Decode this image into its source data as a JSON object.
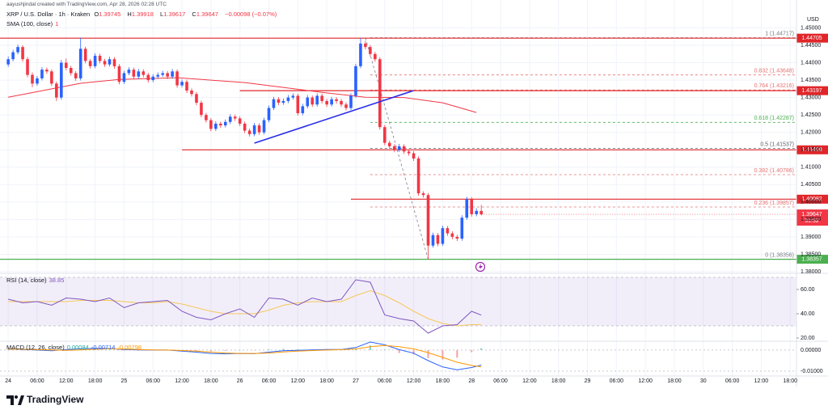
{
  "chart_data": {
    "type": "candlestick",
    "credit": "aayushjindal created with TradingView.com, Apr 28, 2026 02:28 UTC",
    "title": "XRP / U.S. Dollar · 1h · Kraken",
    "ohlc_prefixes": [
      "O",
      "H",
      "L",
      "C"
    ],
    "change_label": "−0.00098 (−0.07%)",
    "currency": "USD",
    "countdown": "31:52",
    "brand": "TradingView",
    "up_color": "#2962ff",
    "down_color": "#f23645",
    "xlim": [
      -1.7,
      163.3
    ],
    "xticks": [
      {
        "value": 0,
        "label": "24"
      },
      {
        "value": 6,
        "label": "06:00"
      },
      {
        "value": 12,
        "label": "12:00"
      },
      {
        "value": 18,
        "label": "18:00"
      },
      {
        "value": 24,
        "label": "25"
      },
      {
        "value": 30,
        "label": "06:00"
      },
      {
        "value": 36,
        "label": "12:00"
      },
      {
        "value": 42,
        "label": "18:00"
      },
      {
        "value": 48,
        "label": "26"
      },
      {
        "value": 54,
        "label": "06:00"
      },
      {
        "value": 60,
        "label": "12:00"
      },
      {
        "value": 66,
        "label": "18:00"
      },
      {
        "value": 72,
        "label": "27"
      },
      {
        "value": 78,
        "label": "06:00"
      },
      {
        "value": 84,
        "label": "12:00"
      },
      {
        "value": 90,
        "label": "18:00"
      },
      {
        "value": 96,
        "label": "28"
      },
      {
        "value": 102,
        "label": "06:00"
      },
      {
        "value": 108,
        "label": "12:00"
      },
      {
        "value": 114,
        "label": "18:00"
      },
      {
        "value": 120,
        "label": "29"
      },
      {
        "value": 126,
        "label": "06:00"
      },
      {
        "value": 132,
        "label": "12:00"
      },
      {
        "value": 138,
        "label": "18:00"
      },
      {
        "value": 144,
        "label": "30"
      },
      {
        "value": 150,
        "label": "06:00"
      },
      {
        "value": 156,
        "label": "12:00"
      },
      {
        "value": 162,
        "label": "18:00"
      }
    ],
    "ylim": [
      1.38,
      1.458
    ],
    "yticks": [
      {
        "value": 1.38,
        "label": "1.38000"
      },
      {
        "value": 1.385,
        "label": "1.38500"
      },
      {
        "value": 1.39,
        "label": "1.39000"
      },
      {
        "value": 1.395,
        "label": "1.39500"
      },
      {
        "value": 1.4,
        "label": "1.40000"
      },
      {
        "value": 1.405,
        "label": "1.40500"
      },
      {
        "value": 1.41,
        "label": "1.41000"
      },
      {
        "value": 1.415,
        "label": "1.41500"
      },
      {
        "value": 1.42,
        "label": "1.42000"
      },
      {
        "value": 1.425,
        "label": "1.42500"
      },
      {
        "value": 1.43,
        "label": "1.43000"
      },
      {
        "value": 1.435,
        "label": "1.43500"
      },
      {
        "value": 1.44,
        "label": "1.44000"
      },
      {
        "value": 1.445,
        "label": "1.44500"
      },
      {
        "value": 1.45,
        "label": "1.45000"
      }
    ],
    "grid": true,
    "candles": {
      "ohlc": [
        [
          1.4395,
          1.4418,
          1.4388,
          1.441
        ],
        [
          1.441,
          1.4437,
          1.4404,
          1.443
        ],
        [
          1.443,
          1.4452,
          1.4424,
          1.4445
        ],
        [
          1.4445,
          1.445,
          1.4403,
          1.441
        ],
        [
          1.441,
          1.4416,
          1.4358,
          1.4365
        ],
        [
          1.4365,
          1.4372,
          1.433,
          1.434
        ],
        [
          1.434,
          1.4362,
          1.4334,
          1.4355
        ],
        [
          1.4355,
          1.4387,
          1.4349,
          1.438
        ],
        [
          1.438,
          1.4386,
          1.4368,
          1.4375
        ],
        [
          1.4375,
          1.4381,
          1.4333,
          1.434
        ],
        [
          1.434,
          1.4346,
          1.429,
          1.43
        ],
        [
          1.43,
          1.4408,
          1.4294,
          1.44
        ],
        [
          1.44,
          1.4412,
          1.4378,
          1.4385
        ],
        [
          1.4385,
          1.4391,
          1.4363,
          1.437
        ],
        [
          1.437,
          1.4376,
          1.4348,
          1.4355
        ],
        [
          1.4355,
          1.4472,
          1.4349,
          1.444
        ],
        [
          1.444,
          1.4446,
          1.4398,
          1.4405
        ],
        [
          1.4405,
          1.4411,
          1.4383,
          1.439
        ],
        [
          1.439,
          1.4427,
          1.4384,
          1.442
        ],
        [
          1.442,
          1.4426,
          1.4398,
          1.4405
        ],
        [
          1.4405,
          1.4411,
          1.4388,
          1.4395
        ],
        [
          1.4395,
          1.4417,
          1.4389,
          1.441
        ],
        [
          1.441,
          1.4416,
          1.4383,
          1.439
        ],
        [
          1.439,
          1.4396,
          1.4338,
          1.4345
        ],
        [
          1.4345,
          1.4377,
          1.4339,
          1.437
        ],
        [
          1.437,
          1.4387,
          1.4364,
          1.438
        ],
        [
          1.438,
          1.4386,
          1.4353,
          1.436
        ],
        [
          1.436,
          1.4382,
          1.4354,
          1.4375
        ],
        [
          1.4375,
          1.4381,
          1.4358,
          1.4365
        ],
        [
          1.4365,
          1.4371,
          1.4343,
          1.435
        ],
        [
          1.435,
          1.4367,
          1.4344,
          1.436
        ],
        [
          1.436,
          1.4372,
          1.4354,
          1.4365
        ],
        [
          1.4365,
          1.4377,
          1.4359,
          1.437
        ],
        [
          1.437,
          1.4376,
          1.4353,
          1.436
        ],
        [
          1.436,
          1.4382,
          1.4354,
          1.4375
        ],
        [
          1.4375,
          1.4381,
          1.4328,
          1.4335
        ],
        [
          1.4335,
          1.4352,
          1.4329,
          1.4345
        ],
        [
          1.4345,
          1.4351,
          1.4313,
          1.432
        ],
        [
          1.432,
          1.4326,
          1.4303,
          1.431
        ],
        [
          1.431,
          1.4316,
          1.4278,
          1.4285
        ],
        [
          1.4285,
          1.4291,
          1.4243,
          1.425
        ],
        [
          1.425,
          1.4256,
          1.4228,
          1.4235
        ],
        [
          1.4235,
          1.4241,
          1.4203,
          1.421
        ],
        [
          1.421,
          1.4232,
          1.4204,
          1.4225
        ],
        [
          1.4225,
          1.4231,
          1.4213,
          1.422
        ],
        [
          1.422,
          1.4237,
          1.4214,
          1.423
        ],
        [
          1.423,
          1.4252,
          1.4224,
          1.4245
        ],
        [
          1.4245,
          1.4251,
          1.4233,
          1.424
        ],
        [
          1.424,
          1.4246,
          1.4218,
          1.4225
        ],
        [
          1.4225,
          1.4231,
          1.4198,
          1.4205
        ],
        [
          1.4205,
          1.4211,
          1.4188,
          1.4195
        ],
        [
          1.4195,
          1.4227,
          1.4189,
          1.422
        ],
        [
          1.422,
          1.4226,
          1.4193,
          1.42
        ],
        [
          1.42,
          1.4242,
          1.4194,
          1.4235
        ],
        [
          1.4235,
          1.4277,
          1.4229,
          1.427
        ],
        [
          1.427,
          1.4302,
          1.4264,
          1.4295
        ],
        [
          1.4295,
          1.4301,
          1.4278,
          1.4285
        ],
        [
          1.4285,
          1.4297,
          1.4279,
          1.429
        ],
        [
          1.429,
          1.4307,
          1.4284,
          1.43
        ],
        [
          1.43,
          1.4312,
          1.4294,
          1.4305
        ],
        [
          1.4305,
          1.4311,
          1.4248,
          1.4255
        ],
        [
          1.4255,
          1.4282,
          1.4249,
          1.4275
        ],
        [
          1.4275,
          1.4307,
          1.4269,
          1.43
        ],
        [
          1.43,
          1.4306,
          1.4273,
          1.428
        ],
        [
          1.428,
          1.4312,
          1.4274,
          1.4305
        ],
        [
          1.4305,
          1.4311,
          1.4283,
          1.429
        ],
        [
          1.429,
          1.4296,
          1.4273,
          1.428
        ],
        [
          1.428,
          1.4302,
          1.4274,
          1.4295
        ],
        [
          1.4295,
          1.4301,
          1.4283,
          1.429
        ],
        [
          1.429,
          1.4296,
          1.4273,
          1.428
        ],
        [
          1.428,
          1.4286,
          1.4263,
          1.427
        ],
        [
          1.427,
          1.4312,
          1.4264,
          1.4305
        ],
        [
          1.4305,
          1.4397,
          1.4299,
          1.439
        ],
        [
          1.439,
          1.44717,
          1.4384,
          1.4455
        ],
        [
          1.4455,
          1.4463,
          1.4438,
          1.4445
        ],
        [
          1.4445,
          1.4451,
          1.4418,
          1.4425
        ],
        [
          1.4425,
          1.4431,
          1.4403,
          1.441
        ],
        [
          1.441,
          1.4416,
          1.4208,
          1.4215
        ],
        [
          1.4215,
          1.4221,
          1.4163,
          1.417
        ],
        [
          1.417,
          1.4176,
          1.4153,
          1.416
        ],
        [
          1.416,
          1.4166,
          1.4143,
          1.415
        ],
        [
          1.415,
          1.4167,
          1.4144,
          1.416
        ],
        [
          1.416,
          1.4166,
          1.4138,
          1.4145
        ],
        [
          1.4145,
          1.4151,
          1.4133,
          1.414
        ],
        [
          1.414,
          1.4146,
          1.4118,
          1.4125
        ],
        [
          1.4125,
          1.4131,
          1.4018,
          1.4025
        ],
        [
          1.4025,
          1.4031,
          1.4013,
          1.402
        ],
        [
          1.402,
          1.4026,
          1.38356,
          1.3875
        ],
        [
          1.3875,
          1.3912,
          1.3869,
          1.3905
        ],
        [
          1.3905,
          1.3911,
          1.3873,
          1.388
        ],
        [
          1.388,
          1.3932,
          1.3874,
          1.3925
        ],
        [
          1.3925,
          1.3931,
          1.3903,
          1.391
        ],
        [
          1.391,
          1.3916,
          1.3893,
          1.39
        ],
        [
          1.39,
          1.3906,
          1.3888,
          1.3895
        ],
        [
          1.3895,
          1.3962,
          1.3889,
          1.3955
        ],
        [
          1.3955,
          1.4015,
          1.3949,
          1.4008
        ],
        [
          1.4008,
          1.4014,
          1.3958,
          1.3965
        ],
        [
          1.3965,
          1.3982,
          1.3959,
          1.39745
        ],
        [
          1.39745,
          1.39918,
          1.39617,
          1.39647
        ]
      ]
    },
    "sma": {
      "name": "SMA (100, close)",
      "value_label": "1",
      "color": "#f23645",
      "x": [
        0,
        15,
        23,
        35,
        49,
        57,
        65,
        74,
        82,
        90,
        97
      ],
      "values": [
        1.4301,
        1.4341,
        1.4352,
        1.4357,
        1.4343,
        1.4329,
        1.4315,
        1.4301,
        1.43,
        1.4285,
        1.4257
      ]
    },
    "trendline": {
      "color": "#2a2ee8",
      "x": [
        51,
        84
      ],
      "values": [
        1.4169,
        1.432
      ]
    },
    "sr_lines": [
      {
        "value": 1.44705,
        "color": "#e0262a"
      },
      {
        "value": 1.43197,
        "x_start": 48,
        "color": "#e0262a"
      },
      {
        "value": 1.41498,
        "x_start": 36,
        "color": "#e0262a"
      },
      {
        "value": 1.40082,
        "x_start": 71,
        "color": "#e0262a"
      },
      {
        "value": 1.38357,
        "color": "#4caf50"
      }
    ],
    "fib": {
      "x_start": 75,
      "anchor_x": [
        74,
        87
      ],
      "levels": [
        {
          "price": 1.44717,
          "label": "1 (1.44717)",
          "color": "#787b86"
        },
        {
          "price": 1.43648,
          "label": "0.832 (1.43648)",
          "color": "#e57373"
        },
        {
          "price": 1.43216,
          "label": "0.764 (1.43216)",
          "color": "#e57373"
        },
        {
          "price": 1.42287,
          "label": "0.618 (1.42287)",
          "color": "#4caf50"
        },
        {
          "price": 1.41537,
          "label": "0.5 (1.41537)",
          "color": "#5d606b"
        },
        {
          "price": 1.40786,
          "label": "0.382 (1.40786)",
          "color": "#e57373"
        },
        {
          "price": 1.39857,
          "label": "0.236 (1.39857)",
          "color": "#e57373"
        },
        {
          "price": 1.38356,
          "label": "0 (1.38356)",
          "color": "#787b86"
        }
      ]
    },
    "rsi": {
      "name": "RSI (14, close)",
      "color": "#7e57c2",
      "ma_color": "#f5c85a",
      "band": [
        30,
        70
      ],
      "ylim": [
        17.33,
        73.33
      ],
      "yticks": [
        {
          "value": 20,
          "label": "20.00"
        },
        {
          "value": 40,
          "label": "40.00"
        },
        {
          "value": 60,
          "label": "60.00"
        }
      ],
      "x": [
        0,
        3,
        6,
        9,
        12,
        15,
        18,
        21,
        24,
        27,
        30,
        33,
        36,
        39,
        42,
        45,
        48,
        51,
        54,
        57,
        60,
        63,
        66,
        69,
        72,
        75,
        78,
        81,
        84,
        87,
        90,
        93,
        96,
        98
      ],
      "values": [
        52,
        49,
        50,
        47,
        53,
        52,
        50,
        53,
        45,
        49,
        50,
        51,
        42,
        37,
        35,
        40,
        44,
        37,
        53,
        52,
        47,
        53,
        50,
        52,
        68,
        66,
        39,
        36,
        34,
        24,
        30,
        31,
        42,
        38.85
      ],
      "ma": [
        50,
        50,
        50,
        50,
        50,
        51,
        51,
        51,
        50,
        49,
        49,
        50,
        48,
        45,
        42,
        40,
        40,
        40,
        43,
        47,
        49,
        50,
        50,
        50,
        55,
        59,
        55,
        49,
        42,
        36,
        32,
        30,
        31,
        31
      ]
    },
    "macd": {
      "name": "MACD (12, 26, close)",
      "macd_color": "#2962ff",
      "signal_color": "#ff9800",
      "hist_colors": [
        "#80cbc4",
        "#f7a1a5"
      ],
      "ylim": [
        -0.0127,
        0.0042
      ],
      "yticks": [
        {
          "value": 0,
          "label": "0.00000"
        },
        {
          "value": -0.01,
          "label": "-0.01000"
        }
      ],
      "x": [
        0,
        3,
        6,
        9,
        12,
        15,
        18,
        21,
        24,
        27,
        30,
        33,
        36,
        39,
        42,
        45,
        48,
        51,
        54,
        57,
        60,
        63,
        66,
        69,
        72,
        75,
        78,
        81,
        84,
        87,
        90,
        93,
        96,
        98
      ],
      "histogram": [
        0.0001,
        -0.0001,
        -0.0002,
        -0.0003,
        0.0003,
        0.0005,
        0.0004,
        0.0001,
        -0.0002,
        -0.0002,
        -0.0001,
        0,
        -0.0003,
        -0.0005,
        -0.0006,
        -0.0004,
        0,
        -0.0001,
        0.0004,
        0.0006,
        0.0004,
        0.0003,
        0.0003,
        0.0001,
        0.0007,
        0.0022,
        0.0003,
        -0.0014,
        -0.0021,
        -0.0038,
        -0.0045,
        -0.0036,
        -0.001,
        0.00084
      ],
      "macd": [
        0.0005,
        0.0003,
        0,
        -0.0003,
        0.0002,
        0.0006,
        0.0008,
        0.0007,
        0.0003,
        0.0001,
        0,
        0,
        -0.0005,
        -0.001,
        -0.0016,
        -0.0018,
        -0.0016,
        -0.0017,
        -0.001,
        -0.0003,
        -0.0001,
        0.0001,
        0.0003,
        0.0003,
        0.0012,
        0.0038,
        0.0025,
        0.0002,
        -0.0015,
        -0.005,
        -0.008,
        -0.0094,
        -0.0083,
        -0.00714
      ],
      "signal": [
        0.0004,
        0.0004,
        0.0002,
        0,
        -0.0001,
        0.0001,
        0.0004,
        0.0006,
        0.0005,
        0.0003,
        0.0001,
        0,
        -0.0002,
        -0.0005,
        -0.001,
        -0.0014,
        -0.0016,
        -0.0016,
        -0.0014,
        -0.0009,
        -0.0005,
        -0.0002,
        0,
        0.0002,
        0.0005,
        0.0016,
        0.0022,
        0.0016,
        0.0006,
        -0.0012,
        -0.0035,
        -0.0058,
        -0.0073,
        -0.00798
      ]
    }
  }
}
